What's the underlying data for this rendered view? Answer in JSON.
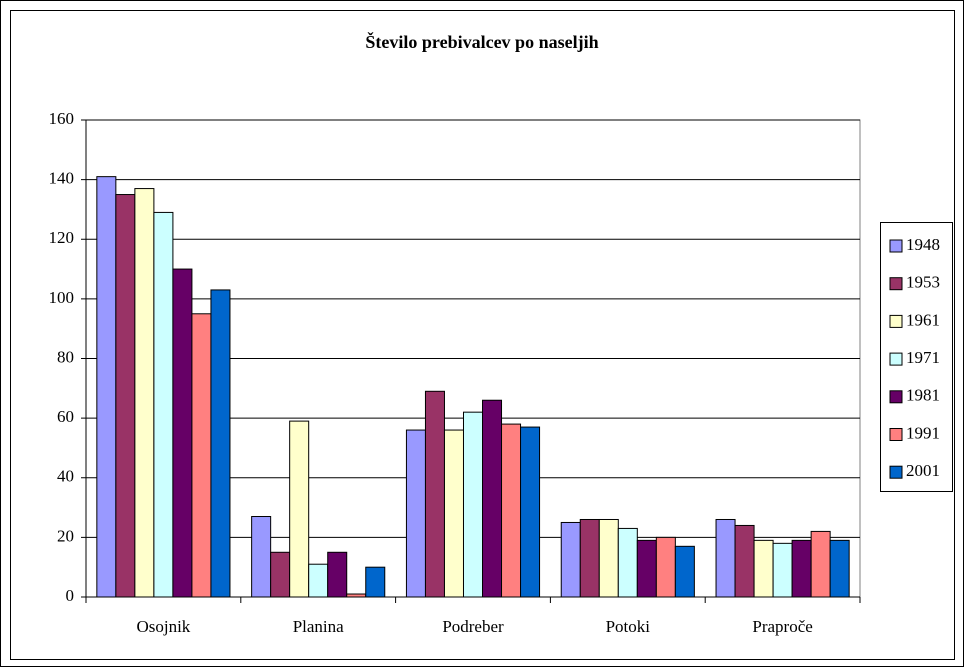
{
  "chart_data": {
    "type": "bar",
    "title": "Število prebivalcev po naseljih",
    "categories": [
      "Osojnik",
      "Planina",
      "Podreber",
      "Potoki",
      "Praproče"
    ],
    "series": [
      {
        "name": "1948",
        "color": "#9999FF",
        "values": [
          141,
          27,
          56,
          25,
          26
        ]
      },
      {
        "name": "1953",
        "color": "#993366",
        "values": [
          135,
          15,
          69,
          26,
          24
        ]
      },
      {
        "name": "1961",
        "color": "#FFFFCC",
        "values": [
          137,
          59,
          56,
          26,
          19
        ]
      },
      {
        "name": "1971",
        "color": "#CCFFFF",
        "values": [
          129,
          11,
          62,
          23,
          18
        ]
      },
      {
        "name": "1981",
        "color": "#660066",
        "values": [
          110,
          15,
          66,
          19,
          19
        ]
      },
      {
        "name": "1991",
        "color": "#FF8080",
        "values": [
          95,
          1,
          58,
          20,
          22
        ]
      },
      {
        "name": "2001",
        "color": "#0066CC",
        "values": [
          103,
          10,
          57,
          17,
          19
        ]
      }
    ],
    "ylim": [
      0,
      160
    ],
    "yticks": [
      0,
      20,
      40,
      60,
      80,
      100,
      120,
      140,
      160
    ],
    "grid": true,
    "legend": "right"
  }
}
